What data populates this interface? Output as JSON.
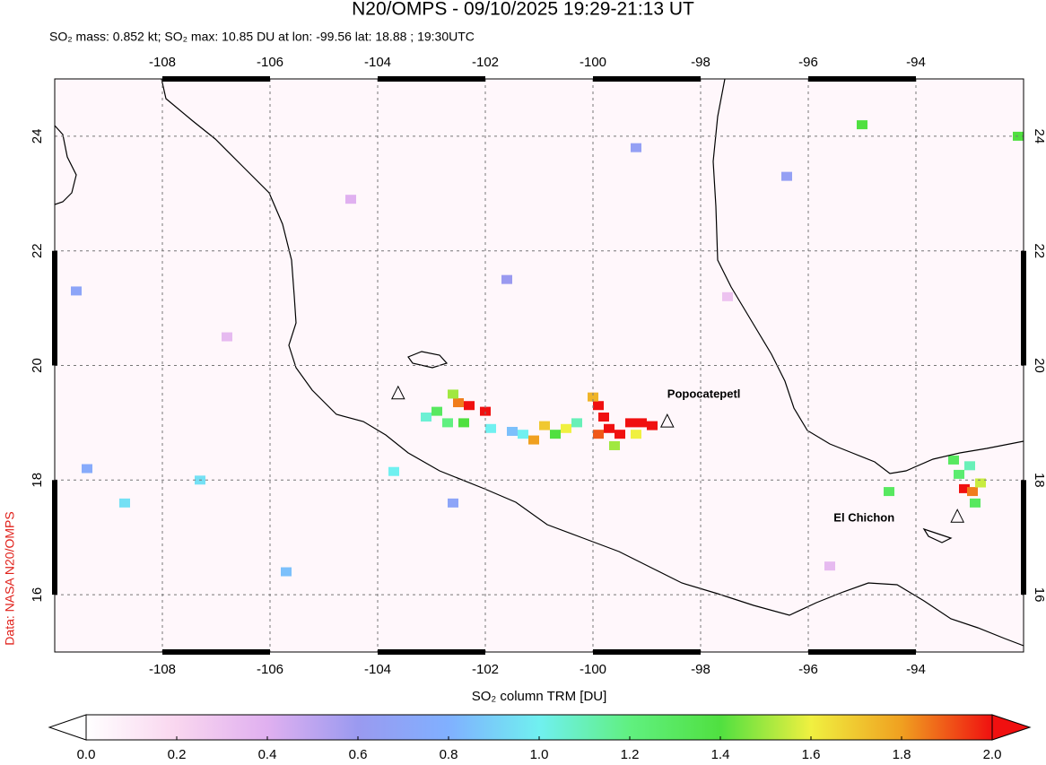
{
  "title": "N20/OMPS - 09/10/2025 19:29-21:13 UT",
  "subtitle": "SO₂ mass: 0.852 kt; SO₂ max: 10.85 DU at lon: -99.56 lat: 18.88 ; 19:30UTC",
  "credit": "Data: NASA N20/OMPS",
  "map": {
    "xlim": [
      -110,
      -92
    ],
    "ylim": [
      15,
      25
    ],
    "xticks": [
      -108,
      -106,
      -104,
      -102,
      -100,
      -98,
      -96,
      -94
    ],
    "yticks": [
      16,
      18,
      20,
      22,
      24
    ],
    "grid": true,
    "volcanoes": [
      {
        "lon": -103.62,
        "lat": 19.51
      },
      {
        "name": "Popocatepetl",
        "lon": -98.62,
        "lat": 19.02
      },
      {
        "name": "El Chichon",
        "lon": -93.23,
        "lat": 17.36
      }
    ],
    "pixels": [
      {
        "lon": -99.9,
        "lat": 19.3,
        "du": 2.0
      },
      {
        "lon": -99.8,
        "lat": 19.1,
        "du": 2.0
      },
      {
        "lon": -99.7,
        "lat": 18.9,
        "du": 2.0
      },
      {
        "lon": -99.5,
        "lat": 18.8,
        "du": 2.0
      },
      {
        "lon": -99.3,
        "lat": 19.0,
        "du": 2.0
      },
      {
        "lon": -99.1,
        "lat": 19.0,
        "du": 2.0
      },
      {
        "lon": -98.9,
        "lat": 18.95,
        "du": 2.0
      },
      {
        "lon": -99.9,
        "lat": 18.8,
        "du": 1.9
      },
      {
        "lon": -100.0,
        "lat": 19.45,
        "du": 1.75
      },
      {
        "lon": -99.6,
        "lat": 18.6,
        "du": 1.5
      },
      {
        "lon": -99.2,
        "lat": 18.8,
        "du": 1.6
      },
      {
        "lon": -102.3,
        "lat": 19.3,
        "du": 2.0
      },
      {
        "lon": -102.0,
        "lat": 19.2,
        "du": 2.0
      },
      {
        "lon": -102.5,
        "lat": 19.35,
        "du": 1.85
      },
      {
        "lon": -102.6,
        "lat": 19.5,
        "du": 1.5
      },
      {
        "lon": -102.9,
        "lat": 19.2,
        "du": 1.3
      },
      {
        "lon": -103.1,
        "lat": 19.1,
        "du": 1.05
      },
      {
        "lon": -102.7,
        "lat": 19.0,
        "du": 1.2
      },
      {
        "lon": -102.4,
        "lat": 19.0,
        "du": 1.4
      },
      {
        "lon": -101.9,
        "lat": 18.9,
        "du": 1.0
      },
      {
        "lon": -101.5,
        "lat": 18.85,
        "du": 0.85
      },
      {
        "lon": -101.1,
        "lat": 18.7,
        "du": 1.8
      },
      {
        "lon": -100.9,
        "lat": 18.95,
        "du": 1.7
      },
      {
        "lon": -100.7,
        "lat": 18.8,
        "du": 1.4
      },
      {
        "lon": -100.5,
        "lat": 18.9,
        "du": 1.6
      },
      {
        "lon": -101.3,
        "lat": 18.8,
        "du": 1.0
      },
      {
        "lon": -100.3,
        "lat": 19.0,
        "du": 1.1
      },
      {
        "lon": -93.1,
        "lat": 17.85,
        "du": 2.0
      },
      {
        "lon": -92.95,
        "lat": 17.8,
        "du": 1.85
      },
      {
        "lon": -92.8,
        "lat": 17.95,
        "du": 1.55
      },
      {
        "lon": -93.2,
        "lat": 18.1,
        "du": 1.25
      },
      {
        "lon": -93.0,
        "lat": 18.25,
        "du": 1.1
      },
      {
        "lon": -92.9,
        "lat": 17.6,
        "du": 1.3
      },
      {
        "lon": -93.3,
        "lat": 18.35,
        "du": 1.3
      },
      {
        "lon": -94.5,
        "lat": 17.8,
        "du": 1.3
      },
      {
        "lon": -108.7,
        "lat": 17.6,
        "du": 0.95
      },
      {
        "lon": -109.6,
        "lat": 21.3,
        "du": 0.7
      },
      {
        "lon": -109.4,
        "lat": 18.2,
        "du": 0.75
      },
      {
        "lon": -107.3,
        "lat": 18.0,
        "du": 0.95
      },
      {
        "lon": -105.7,
        "lat": 16.4,
        "du": 0.85
      },
      {
        "lon": -103.7,
        "lat": 18.15,
        "du": 1.0
      },
      {
        "lon": -102.6,
        "lat": 17.6,
        "du": 0.7
      },
      {
        "lon": -95.0,
        "lat": 24.2,
        "du": 1.4
      },
      {
        "lon": -92.1,
        "lat": 24.0,
        "du": 1.4
      },
      {
        "lon": -99.2,
        "lat": 23.8,
        "du": 0.65
      },
      {
        "lon": -101.6,
        "lat": 21.5,
        "du": 0.6
      },
      {
        "lon": -96.4,
        "lat": 23.3,
        "du": 0.65
      },
      {
        "lon": -104.5,
        "lat": 22.9,
        "du": 0.4
      },
      {
        "lon": -106.8,
        "lat": 20.5,
        "du": 0.35
      },
      {
        "lon": -97.5,
        "lat": 21.2,
        "du": 0.3
      },
      {
        "lon": -95.6,
        "lat": 16.5,
        "du": 0.35
      }
    ]
  },
  "colorbar": {
    "label": "SO₂ column TRM [DU]",
    "lim": [
      0,
      2
    ],
    "colors": [
      "#ffffff",
      "#f9d6ef",
      "#e0b0f0",
      "#9a9af0",
      "#80b0ff",
      "#70f0f0",
      "#60f080",
      "#50e040",
      "#f0f040",
      "#f0a020",
      "#f01010"
    ],
    "ticks": [
      {
        "value": 0,
        "label": "0.0"
      },
      0.2,
      0.4,
      0.6,
      0.8,
      {
        "value": 1,
        "label": "1.0"
      },
      1.2,
      1.4,
      1.6,
      1.8,
      {
        "value": 2,
        "label": "2.0"
      }
    ]
  }
}
